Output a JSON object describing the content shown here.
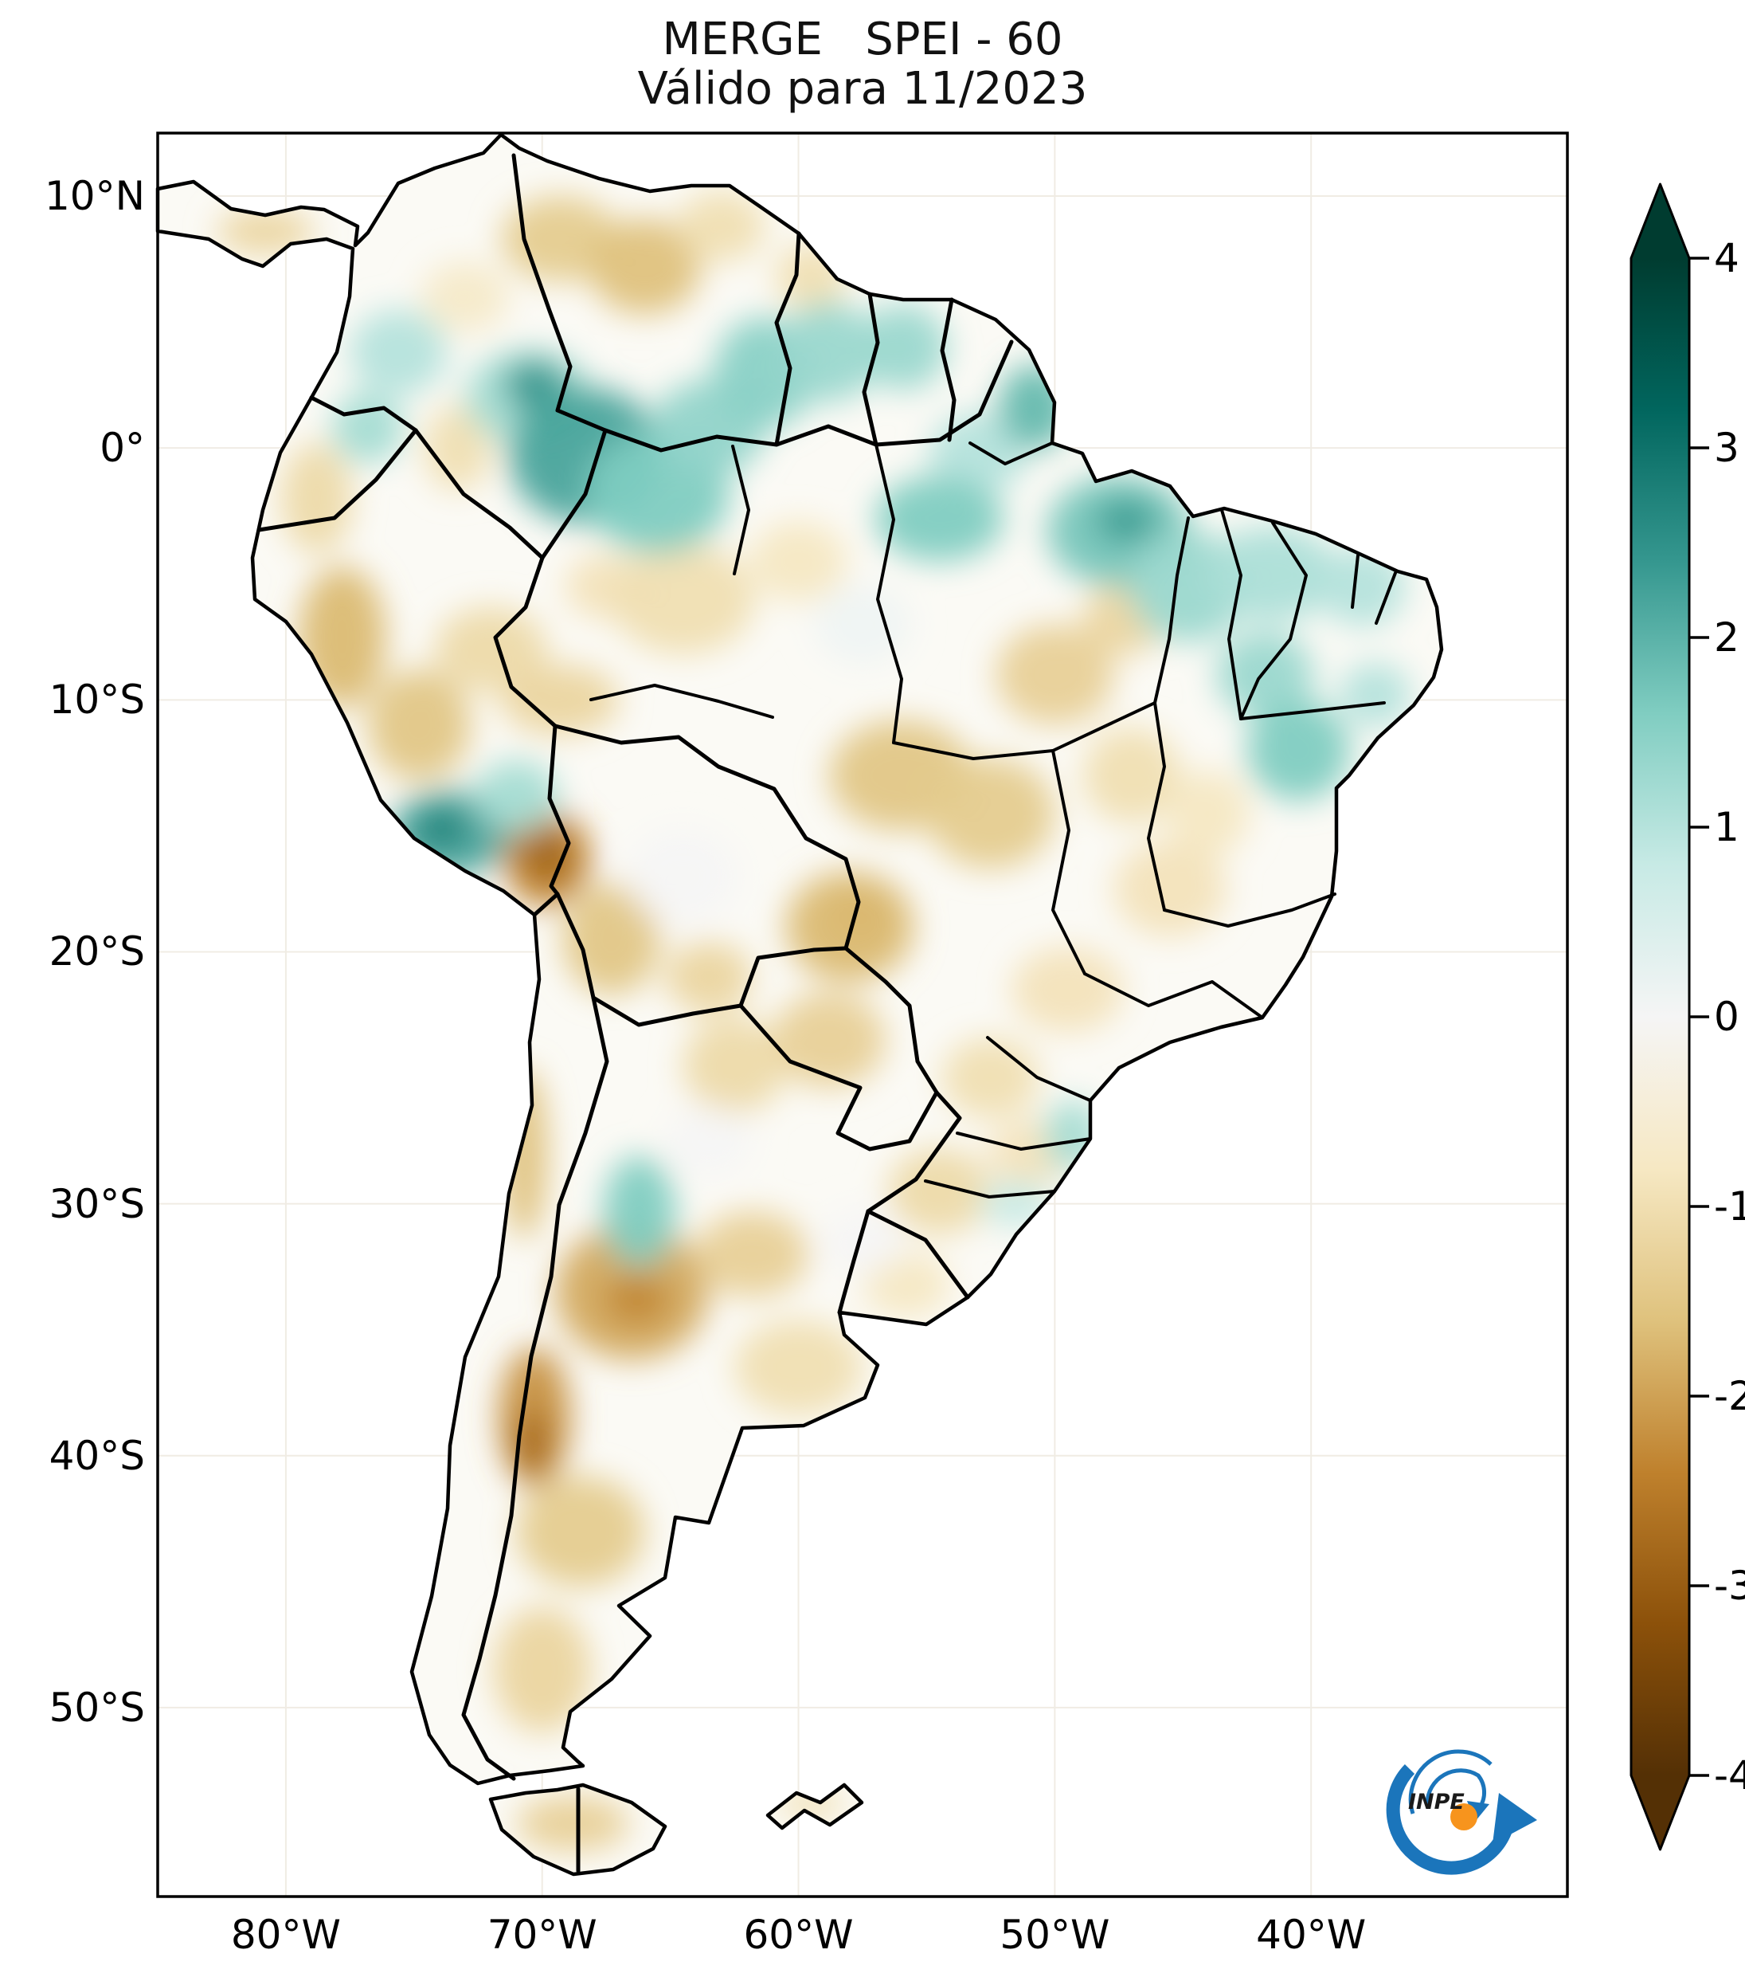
{
  "header": {
    "title": "MERGE   SPEI - 60",
    "subtitle": "Válido para 11/2023"
  },
  "logo": {
    "label": "INPE",
    "blue": "#1b75bb",
    "orange": "#f7941d"
  },
  "chart_data": {
    "type": "heatmap",
    "title": "MERGE   SPEI - 60",
    "subtitle": "Válido para 11/2023",
    "index_name": "SPEI-60",
    "valid_for": "11/2023",
    "region": "South America",
    "grid_on": true,
    "geo_extent": {
      "lon_min": -85,
      "lon_max": -30,
      "lat_min": -57.5,
      "lat_max": 12.5
    },
    "x_axis": {
      "ticks": [
        {
          "label": "80°W",
          "lon": -80
        },
        {
          "label": "70°W",
          "lon": -70
        },
        {
          "label": "60°W",
          "lon": -60
        },
        {
          "label": "50°W",
          "lon": -50
        },
        {
          "label": "40°W",
          "lon": -40
        }
      ]
    },
    "y_axis": {
      "ticks": [
        {
          "label": "10°N",
          "lat": 10
        },
        {
          "label": "0°",
          "lat": 0
        },
        {
          "label": "10°S",
          "lat": -10
        },
        {
          "label": "20°S",
          "lat": -20
        },
        {
          "label": "30°S",
          "lat": -30
        },
        {
          "label": "40°S",
          "lat": -40
        },
        {
          "label": "50°S",
          "lat": -50
        }
      ]
    },
    "colorbar": {
      "vmin": -4,
      "vmax": 4,
      "extend": "both",
      "ticks": [
        {
          "label": "4",
          "value": 4
        },
        {
          "label": "3",
          "value": 3
        },
        {
          "label": "2",
          "value": 2
        },
        {
          "label": "1",
          "value": 1
        },
        {
          "label": "0",
          "value": 0
        },
        {
          "label": "-1",
          "value": -1
        },
        {
          "label": "-2",
          "value": -2
        },
        {
          "label": "-3",
          "value": -3
        },
        {
          "label": "-4",
          "value": -4
        }
      ],
      "gradient_stops": [
        {
          "value": -4.0,
          "color": "#543005"
        },
        {
          "value": -3.2,
          "color": "#8c510a"
        },
        {
          "value": -2.4,
          "color": "#bf812d"
        },
        {
          "value": -1.6,
          "color": "#dfc27d"
        },
        {
          "value": -0.8,
          "color": "#f6e8c3"
        },
        {
          "value": 0.0,
          "color": "#f5f5f5"
        },
        {
          "value": 0.8,
          "color": "#c7eae5"
        },
        {
          "value": 1.6,
          "color": "#80cdc1"
        },
        {
          "value": 2.4,
          "color": "#35978f"
        },
        {
          "value": 3.2,
          "color": "#01665e"
        },
        {
          "value": 4.0,
          "color": "#003c30"
        }
      ]
    },
    "patch_format": [
      "lon",
      "lat",
      "radius_lon_deg",
      "radius_lat_deg",
      "spei_value"
    ],
    "anomaly_patches": [
      [
        -80.8,
        8.6,
        1.9,
        0.9,
        -1.2
      ],
      [
        -69.3,
        8.3,
        2.3,
        1.7,
        -1.4
      ],
      [
        -66.0,
        7.2,
        2.2,
        1.9,
        -1.6
      ],
      [
        -63.0,
        8.8,
        1.7,
        1.4,
        -1.0
      ],
      [
        -59.5,
        6.8,
        1.4,
        1.3,
        -1.0
      ],
      [
        -73.0,
        6.0,
        1.7,
        1.4,
        -0.7
      ],
      [
        -73.3,
        0.0,
        1.3,
        1.7,
        -1.0
      ],
      [
        -78.8,
        -2.0,
        1.4,
        2.2,
        -1.1
      ],
      [
        -77.8,
        -7.5,
        1.7,
        2.8,
        -1.7
      ],
      [
        -74.8,
        -11.0,
        2.0,
        2.2,
        -1.5
      ],
      [
        -72.0,
        -8.0,
        2.2,
        1.7,
        -1.1
      ],
      [
        -69.3,
        -10.0,
        2.3,
        1.4,
        -1.2
      ],
      [
        -67.5,
        -5.5,
        1.6,
        1.3,
        -0.9
      ],
      [
        -64.5,
        -6.0,
        2.8,
        2.2,
        -1.0
      ],
      [
        -60.0,
        -4.5,
        1.9,
        1.6,
        -0.8
      ],
      [
        -69.8,
        -16.3,
        1.7,
        1.9,
        -2.4
      ],
      [
        -69.8,
        -16.2,
        0.8,
        0.8,
        -3.0
      ],
      [
        -67.3,
        -19.5,
        1.9,
        2.2,
        -1.5
      ],
      [
        -63.5,
        -21.0,
        1.7,
        1.4,
        -1.2
      ],
      [
        -56.0,
        -13.0,
        2.8,
        2.2,
        -1.5
      ],
      [
        -57.5,
        -18.5,
        1.3,
        1.1,
        -2.2
      ],
      [
        -58.0,
        -19.0,
        2.5,
        2.2,
        -1.7
      ],
      [
        -52.5,
        -14.5,
        2.5,
        2.2,
        -1.4
      ],
      [
        -50.0,
        -9.0,
        2.3,
        2.0,
        -1.3
      ],
      [
        -47.3,
        -6.8,
        1.6,
        1.4,
        -1.2
      ],
      [
        -47.0,
        -13.0,
        1.9,
        1.9,
        -1.0
      ],
      [
        -44.0,
        -14.5,
        1.6,
        1.7,
        -0.8
      ],
      [
        -45.5,
        -17.5,
        2.2,
        1.9,
        -0.9
      ],
      [
        -58.8,
        -23.5,
        2.2,
        1.9,
        -1.3
      ],
      [
        -62.5,
        -24.5,
        2.0,
        1.9,
        -1.1
      ],
      [
        -49.5,
        -21.5,
        2.2,
        1.7,
        -0.9
      ],
      [
        -52.5,
        -25.0,
        1.9,
        1.6,
        -1.0
      ],
      [
        -51.0,
        -28.0,
        1.6,
        1.3,
        -0.9
      ],
      [
        -54.5,
        -29.5,
        2.0,
        1.7,
        -1.1
      ],
      [
        -55.8,
        -33.2,
        1.7,
        1.3,
        -0.8
      ],
      [
        -70.7,
        -28.0,
        0.9,
        3.4,
        -1.6
      ],
      [
        -70.3,
        -38.5,
        1.4,
        2.8,
        -2.2
      ],
      [
        -70.4,
        -39.5,
        0.7,
        1.3,
        -2.8
      ],
      [
        -66.5,
        -33.5,
        3.0,
        2.7,
        -1.9
      ],
      [
        -66.3,
        -33.8,
        1.3,
        1.0,
        -2.3
      ],
      [
        -61.8,
        -32.0,
        2.2,
        1.7,
        -1.3
      ],
      [
        -60.0,
        -36.5,
        2.5,
        1.9,
        -1.0
      ],
      [
        -68.5,
        -43.0,
        2.5,
        2.2,
        -1.4
      ],
      [
        -70.0,
        -48.5,
        1.9,
        2.5,
        -1.2
      ],
      [
        -68.8,
        -54.6,
        2.2,
        1.1,
        -1.3
      ],
      [
        -59.5,
        -53.8,
        1.3,
        0.6,
        -1.0
      ],
      [
        -64.5,
        -17.0,
        2.2,
        1.9,
        0.0
      ],
      [
        -57.5,
        -31.5,
        1.6,
        1.3,
        0.0
      ],
      [
        -63.5,
        -27.5,
        1.7,
        1.4,
        0.0
      ],
      [
        -57.5,
        -7.0,
        1.9,
        1.6,
        0.1
      ],
      [
        -75.6,
        3.8,
        1.9,
        1.7,
        1.0
      ],
      [
        -76.8,
        0.8,
        1.4,
        1.4,
        1.2
      ],
      [
        -70.5,
        2.0,
        2.5,
        1.9,
        1.2
      ],
      [
        -70.3,
        2.5,
        1.2,
        1.0,
        2.4
      ],
      [
        -68.3,
        -0.3,
        3.0,
        2.7,
        2.2
      ],
      [
        -65.5,
        -1.8,
        2.8,
        2.4,
        1.6
      ],
      [
        -63.5,
        0.8,
        2.2,
        1.9,
        1.4
      ],
      [
        -61.3,
        3.0,
        2.0,
        2.2,
        1.5
      ],
      [
        -58.8,
        3.8,
        1.9,
        2.0,
        1.3
      ],
      [
        -55.9,
        4.0,
        1.7,
        1.7,
        1.3
      ],
      [
        -53.0,
        -0.2,
        1.9,
        1.6,
        1.0
      ],
      [
        -50.8,
        1.6,
        1.4,
        1.7,
        1.9
      ],
      [
        -54.5,
        -2.8,
        2.5,
        1.7,
        1.6
      ],
      [
        -47.5,
        -3.3,
        2.8,
        2.2,
        1.7
      ],
      [
        -47.2,
        -2.9,
        1.2,
        0.9,
        2.3
      ],
      [
        -44.8,
        -5.5,
        2.3,
        2.2,
        1.3
      ],
      [
        -41.5,
        -5.0,
        2.5,
        1.9,
        1.1
      ],
      [
        -38.0,
        -5.5,
        1.7,
        1.6,
        1.0
      ],
      [
        -41.8,
        -9.0,
        1.9,
        1.7,
        1.3
      ],
      [
        -40.5,
        -12.0,
        2.0,
        2.0,
        1.6
      ],
      [
        -37.5,
        -9.8,
        1.4,
        1.3,
        1.0
      ],
      [
        -73.6,
        -15.3,
        2.3,
        1.7,
        2.2
      ],
      [
        -73.9,
        -15.1,
        1.0,
        0.7,
        2.8
      ],
      [
        -71.0,
        -13.8,
        1.6,
        1.4,
        1.2
      ],
      [
        -66.2,
        -30.3,
        1.4,
        2.2,
        1.6
      ],
      [
        -49.3,
        -27.3,
        1.1,
        1.4,
        1.2
      ],
      [
        -51.5,
        -30.0,
        1.4,
        0.9,
        0.8
      ]
    ]
  }
}
